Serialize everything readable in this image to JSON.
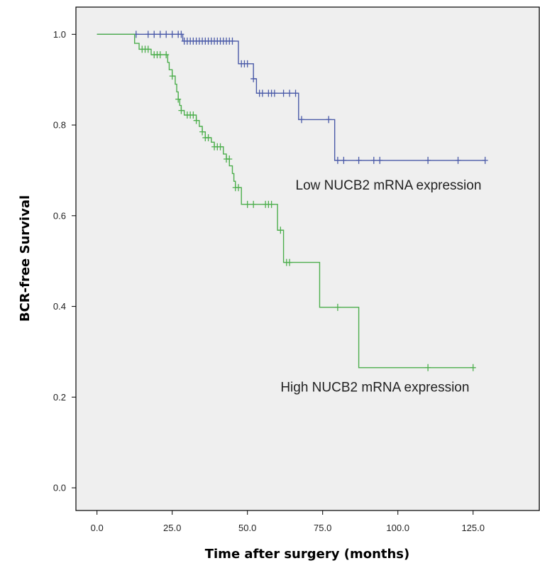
{
  "chart_data": {
    "type": "line",
    "chart_kind": "kaplan-meier step plot",
    "xlabel": "Time after surgery (months)",
    "ylabel": "BCR-free Survival",
    "xlim": [
      -7,
      147
    ],
    "ylim": [
      -0.05,
      1.06
    ],
    "x_ticks": [
      "0.0",
      "25.0",
      "50.0",
      "75.0",
      "100.0",
      "125.0"
    ],
    "x_tick_values": [
      0,
      25,
      50,
      75,
      100,
      125
    ],
    "y_ticks": [
      "0.0",
      "0.2",
      "0.4",
      "0.6",
      "0.8",
      "1.0"
    ],
    "y_tick_values": [
      0,
      0.2,
      0.4,
      0.6,
      0.8,
      1.0
    ],
    "grid": false,
    "background_color": "#efefef",
    "series": [
      {
        "name": "Low NUCB2 mRNA expression",
        "color": "#4a5aa8",
        "steps": [
          [
            0,
            1.0
          ],
          [
            28.5,
            0.985
          ],
          [
            47,
            0.935
          ],
          [
            52,
            0.902
          ],
          [
            53,
            0.87
          ],
          [
            67,
            0.812
          ],
          [
            79,
            0.722
          ],
          [
            129,
            0.722
          ]
        ],
        "censored": [
          [
            13,
            1.0
          ],
          [
            17,
            1.0
          ],
          [
            19,
            1.0
          ],
          [
            21,
            1.0
          ],
          [
            23,
            1.0
          ],
          [
            25,
            1.0
          ],
          [
            27,
            1.0
          ],
          [
            28,
            1.0
          ],
          [
            29,
            0.985
          ],
          [
            30,
            0.985
          ],
          [
            31,
            0.985
          ],
          [
            32,
            0.985
          ],
          [
            33,
            0.985
          ],
          [
            34,
            0.985
          ],
          [
            35,
            0.985
          ],
          [
            36,
            0.985
          ],
          [
            37,
            0.985
          ],
          [
            38,
            0.985
          ],
          [
            39,
            0.985
          ],
          [
            40,
            0.985
          ],
          [
            41,
            0.985
          ],
          [
            42,
            0.985
          ],
          [
            43,
            0.985
          ],
          [
            44,
            0.985
          ],
          [
            45,
            0.985
          ],
          [
            48,
            0.935
          ],
          [
            49,
            0.935
          ],
          [
            50,
            0.935
          ],
          [
            52,
            0.902
          ],
          [
            54,
            0.87
          ],
          [
            55,
            0.87
          ],
          [
            57,
            0.87
          ],
          [
            58,
            0.87
          ],
          [
            59,
            0.87
          ],
          [
            62,
            0.87
          ],
          [
            64,
            0.87
          ],
          [
            66,
            0.87
          ],
          [
            68,
            0.812
          ],
          [
            77,
            0.812
          ],
          [
            80,
            0.722
          ],
          [
            82,
            0.722
          ],
          [
            87,
            0.722
          ],
          [
            92,
            0.722
          ],
          [
            94,
            0.722
          ],
          [
            110,
            0.722
          ],
          [
            120,
            0.722
          ],
          [
            129,
            0.722
          ]
        ]
      },
      {
        "name": "High NUCB2 mRNA expression",
        "color": "#4cae4c",
        "steps": [
          [
            0,
            1.0
          ],
          [
            12.5,
            0.98
          ],
          [
            14,
            0.967
          ],
          [
            18,
            0.955
          ],
          [
            23.5,
            0.938
          ],
          [
            24,
            0.922
          ],
          [
            25,
            0.908
          ],
          [
            26,
            0.89
          ],
          [
            26.5,
            0.873
          ],
          [
            27,
            0.857
          ],
          [
            27.5,
            0.843
          ],
          [
            28,
            0.832
          ],
          [
            29,
            0.822
          ],
          [
            33,
            0.81
          ],
          [
            34,
            0.797
          ],
          [
            35,
            0.785
          ],
          [
            36,
            0.772
          ],
          [
            38,
            0.762
          ],
          [
            39,
            0.752
          ],
          [
            42,
            0.736
          ],
          [
            43,
            0.725
          ],
          [
            44,
            0.71
          ],
          [
            45,
            0.693
          ],
          [
            45.5,
            0.676
          ],
          [
            46,
            0.662
          ],
          [
            48,
            0.625
          ],
          [
            60,
            0.568
          ],
          [
            62,
            0.497
          ],
          [
            74,
            0.398
          ],
          [
            87,
            0.265
          ],
          [
            125,
            0.265
          ]
        ],
        "censored": [
          [
            15,
            0.967
          ],
          [
            16,
            0.967
          ],
          [
            17,
            0.967
          ],
          [
            19,
            0.955
          ],
          [
            20,
            0.955
          ],
          [
            21,
            0.955
          ],
          [
            23,
            0.955
          ],
          [
            25,
            0.908
          ],
          [
            27,
            0.857
          ],
          [
            28,
            0.832
          ],
          [
            30,
            0.822
          ],
          [
            31,
            0.822
          ],
          [
            32,
            0.822
          ],
          [
            33,
            0.81
          ],
          [
            35,
            0.785
          ],
          [
            36,
            0.772
          ],
          [
            37,
            0.772
          ],
          [
            39,
            0.752
          ],
          [
            40,
            0.752
          ],
          [
            41,
            0.752
          ],
          [
            43,
            0.725
          ],
          [
            44,
            0.725
          ],
          [
            46,
            0.662
          ],
          [
            47,
            0.662
          ],
          [
            50,
            0.625
          ],
          [
            52,
            0.625
          ],
          [
            56,
            0.625
          ],
          [
            57,
            0.625
          ],
          [
            58,
            0.625
          ],
          [
            61,
            0.568
          ],
          [
            63,
            0.497
          ],
          [
            64,
            0.497
          ],
          [
            80,
            0.398
          ],
          [
            110,
            0.265
          ],
          [
            125,
            0.265
          ]
        ]
      }
    ],
    "annotations": [
      {
        "text": "Low NUCB2 mRNA expression",
        "x": 66,
        "y": 0.658,
        "color": "#222222"
      },
      {
        "text": "High NUCB2 mRNA expression",
        "x": 61,
        "y": 0.212,
        "color": "#222222"
      }
    ]
  }
}
